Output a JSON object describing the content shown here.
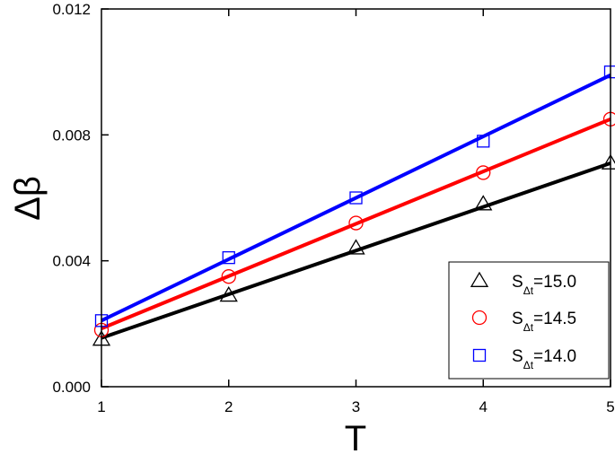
{
  "chart_data": {
    "type": "scatter",
    "xlabel": "T",
    "ylabel": "Δβ",
    "xlim": [
      1,
      5
    ],
    "ylim": [
      0,
      0.012
    ],
    "x_ticks": [
      "1",
      "2",
      "3",
      "4",
      "5"
    ],
    "y_ticks": [
      "0.000",
      "0.004",
      "0.008",
      "0.012"
    ],
    "grid": false,
    "legend_position": "bottom-right",
    "series": [
      {
        "name": "S_Δt=15.0",
        "name_main": "S",
        "name_sub": "Δt",
        "name_value": "=15.0",
        "marker": "triangle",
        "color": "#000000",
        "x": [
          1,
          2,
          3,
          4,
          5
        ],
        "y": [
          0.0015,
          0.0029,
          0.0044,
          0.0058,
          0.0071
        ],
        "fit": [
          0.00155,
          0.0071
        ]
      },
      {
        "name": "S_Δt=14.5",
        "name_main": "S",
        "name_sub": "Δt",
        "name_value": "=14.5",
        "marker": "circle",
        "color": "#ff0000",
        "x": [
          1,
          2,
          3,
          4,
          5
        ],
        "y": [
          0.0018,
          0.0035,
          0.0052,
          0.0068,
          0.0085
        ],
        "fit": [
          0.00185,
          0.0085
        ]
      },
      {
        "name": "S_Δt=14.0",
        "name_main": "S",
        "name_sub": "Δt",
        "name_value": "=14.0",
        "marker": "square",
        "color": "#0000ff",
        "x": [
          1,
          2,
          3,
          4,
          5
        ],
        "y": [
          0.0021,
          0.0041,
          0.006,
          0.0078,
          0.01
        ],
        "fit": [
          0.0021,
          0.0099
        ]
      }
    ]
  }
}
